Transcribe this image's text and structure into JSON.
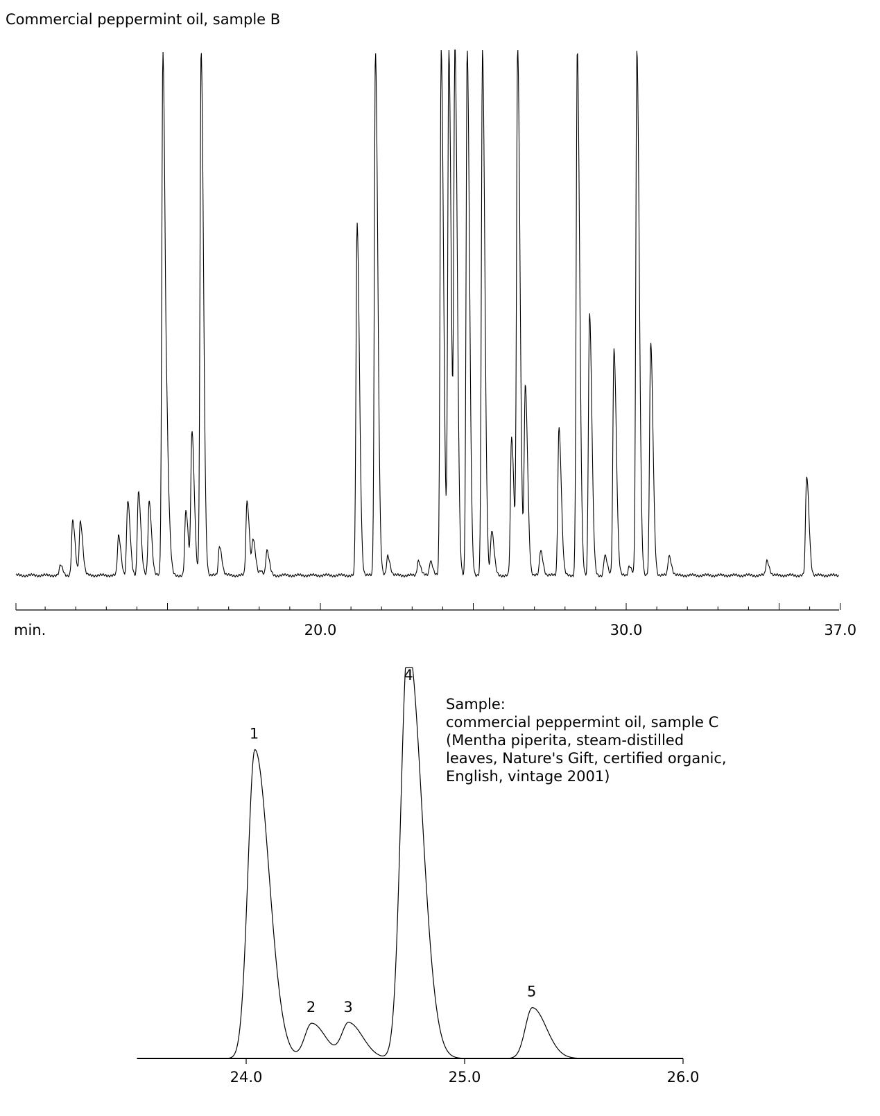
{
  "chart_data": [
    {
      "type": "line",
      "title": "Commercial peppermint oil, sample B",
      "xlabel": "min.",
      "x_ticks": [
        {
          "value": 20.0,
          "label": "20.0"
        },
        {
          "value": 30.0,
          "label": "30.0"
        },
        {
          "value": 37.0,
          "label": "37.0"
        }
      ],
      "xlim": [
        10.0,
        37.0
      ],
      "y_offscale": 1.06,
      "peaks": [
        {
          "x": 11.5,
          "h": 0.02
        },
        {
          "x": 11.9,
          "h": 0.11
        },
        {
          "x": 12.15,
          "h": 0.11
        },
        {
          "x": 13.4,
          "h": 0.08
        },
        {
          "x": 13.7,
          "h": 0.15
        },
        {
          "x": 14.05,
          "h": 0.17
        },
        {
          "x": 14.4,
          "h": 0.15
        },
        {
          "x": 14.85,
          "h": 1.06
        },
        {
          "x": 15.0,
          "h": 0.15
        },
        {
          "x": 15.6,
          "h": 0.13
        },
        {
          "x": 15.8,
          "h": 0.29
        },
        {
          "x": 16.1,
          "h": 1.06
        },
        {
          "x": 16.7,
          "h": 0.06
        },
        {
          "x": 17.6,
          "h": 0.15
        },
        {
          "x": 17.8,
          "h": 0.07
        },
        {
          "x": 18.05,
          "h": 0.01
        },
        {
          "x": 18.25,
          "h": 0.05
        },
        {
          "x": 21.2,
          "h": 0.71
        },
        {
          "x": 21.8,
          "h": 1.06
        },
        {
          "x": 22.2,
          "h": 0.04
        },
        {
          "x": 23.2,
          "h": 0.03
        },
        {
          "x": 23.6,
          "h": 0.03
        },
        {
          "x": 23.95,
          "h": 1.06
        },
        {
          "x": 24.2,
          "h": 1.06
        },
        {
          "x": 24.4,
          "h": 1.06
        },
        {
          "x": 24.8,
          "h": 1.06
        },
        {
          "x": 25.3,
          "h": 1.06
        },
        {
          "x": 25.6,
          "h": 0.09
        },
        {
          "x": 26.25,
          "h": 0.28
        },
        {
          "x": 26.45,
          "h": 1.06
        },
        {
          "x": 26.7,
          "h": 0.38
        },
        {
          "x": 27.2,
          "h": 0.05
        },
        {
          "x": 27.8,
          "h": 0.3
        },
        {
          "x": 28.4,
          "h": 1.06
        },
        {
          "x": 28.8,
          "h": 0.53
        },
        {
          "x": 29.3,
          "h": 0.04
        },
        {
          "x": 29.6,
          "h": 0.46
        },
        {
          "x": 30.1,
          "h": 0.02
        },
        {
          "x": 30.35,
          "h": 1.06
        },
        {
          "x": 30.8,
          "h": 0.47
        },
        {
          "x": 31.4,
          "h": 0.04
        },
        {
          "x": 34.6,
          "h": 0.03
        },
        {
          "x": 35.9,
          "h": 0.2
        }
      ]
    },
    {
      "type": "line",
      "title": "",
      "x_ticks": [
        {
          "value": 24.0,
          "label": "24.0"
        },
        {
          "value": 25.0,
          "label": "25.0"
        },
        {
          "value": 26.0,
          "label": "26.0"
        }
      ],
      "xlim": [
        23.5,
        26.0
      ],
      "peaks": [
        {
          "label": "1",
          "x": 24.04,
          "h": 0.79
        },
        {
          "label": "2",
          "x": 24.3,
          "h": 0.09
        },
        {
          "label": "3",
          "x": 24.47,
          "h": 0.09
        },
        {
          "label": "4",
          "x": 24.74,
          "h": 1.06
        },
        {
          "label": "5",
          "x": 25.31,
          "h": 0.13
        }
      ],
      "annotation": [
        "Sample:",
        "commercial peppermint oil, sample C",
        "(Mentha piperita, steam-distilled",
        "leaves, Nature's Gift, certified organic,",
        "English, vintage 2001)"
      ]
    }
  ]
}
